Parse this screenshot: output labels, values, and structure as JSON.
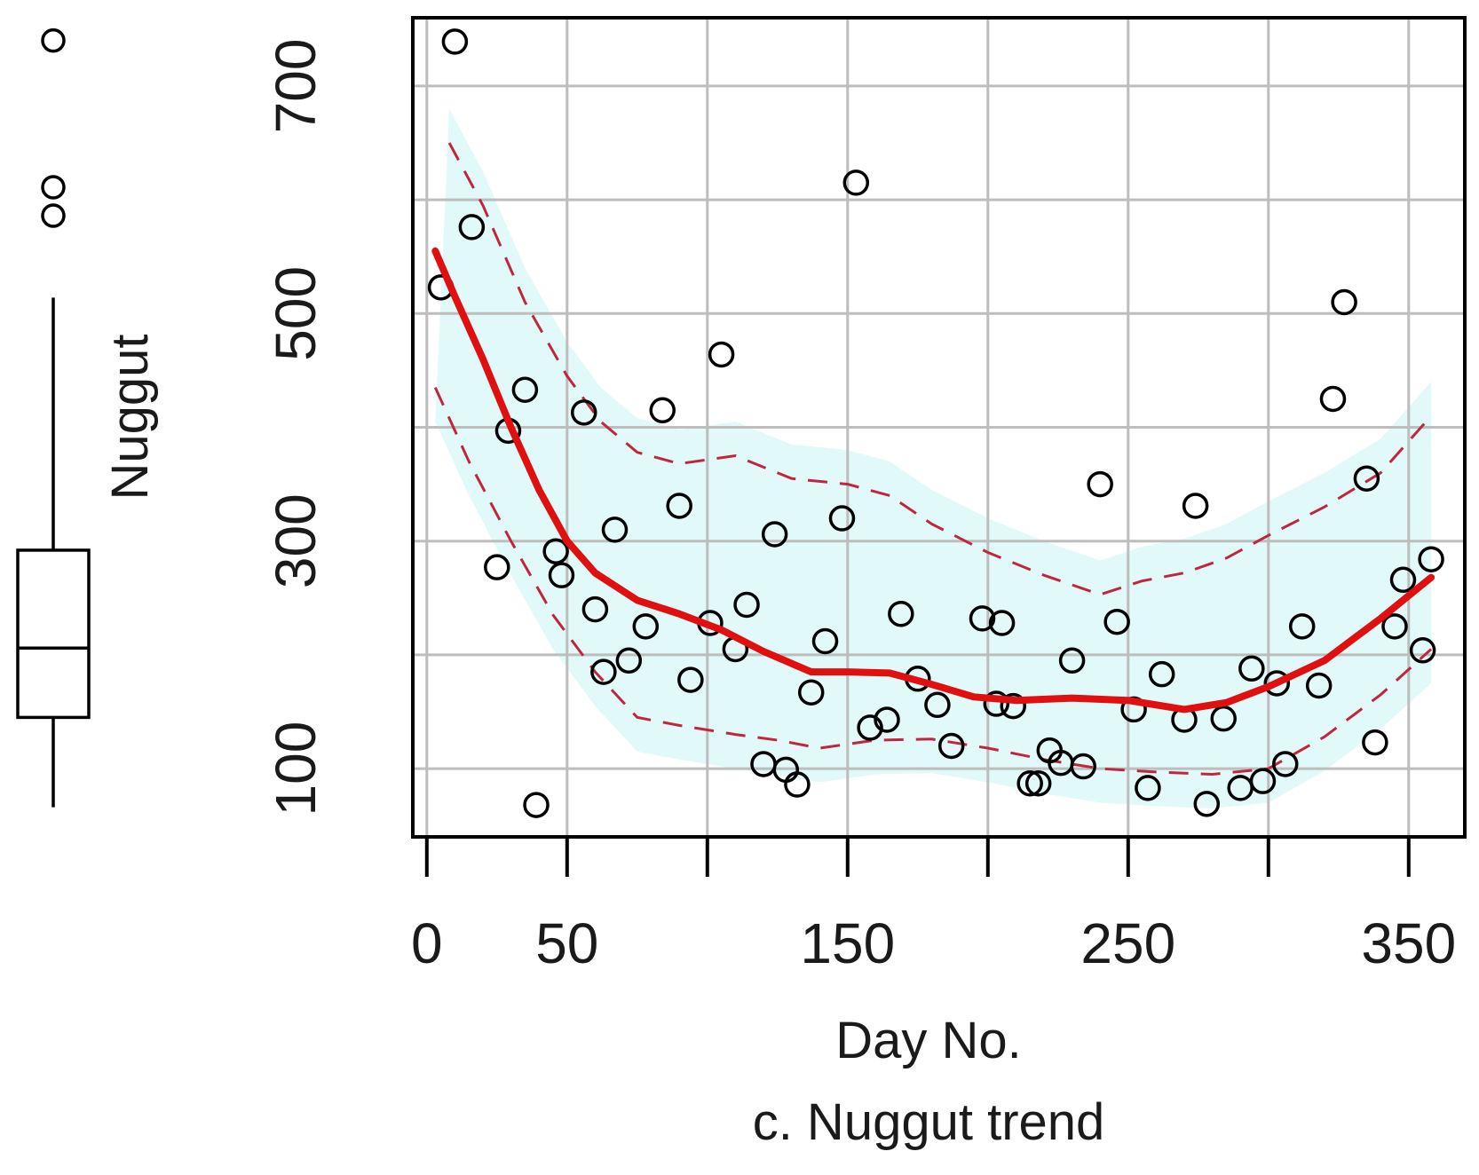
{
  "chart_data": {
    "type": "scatter",
    "caption": "c. Nuggut trend",
    "xlabel": "Day No.",
    "ylabel": "Nuggut",
    "xlim": [
      -5,
      370
    ],
    "ylim": [
      40,
      760
    ],
    "x_ticks": [
      0,
      50,
      100,
      150,
      200,
      250,
      300,
      350
    ],
    "x_tick_labels": [
      "0",
      "50",
      "",
      "150",
      "",
      "250",
      "",
      "350"
    ],
    "y_ticks": [
      100,
      200,
      300,
      400,
      500,
      600,
      700
    ],
    "y_tick_labels": [
      "100",
      "",
      "300",
      "",
      "500",
      "",
      "700"
    ],
    "x_grid": [
      0,
      50,
      100,
      150,
      200,
      250,
      300,
      350
    ],
    "y_grid": [
      100,
      200,
      300,
      400,
      500,
      600,
      700
    ],
    "grid": true,
    "colors": {
      "points": "#000000",
      "trend": "#e01010",
      "band": "#c0263d",
      "grid": "#bdbdbd",
      "ribbon": "#d9f7f7"
    },
    "points": [
      [
        5,
        523
      ],
      [
        10,
        739
      ],
      [
        16,
        576
      ],
      [
        25,
        277
      ],
      [
        29,
        397
      ],
      [
        35,
        433
      ],
      [
        39,
        68
      ],
      [
        46,
        291
      ],
      [
        48,
        270
      ],
      [
        56,
        413
      ],
      [
        60,
        240
      ],
      [
        63,
        185
      ],
      [
        67,
        310
      ],
      [
        72,
        195
      ],
      [
        78,
        225
      ],
      [
        84,
        415
      ],
      [
        90,
        331
      ],
      [
        94,
        178
      ],
      [
        101,
        228
      ],
      [
        105,
        464
      ],
      [
        110,
        205
      ],
      [
        114,
        244
      ],
      [
        120,
        104
      ],
      [
        124,
        306
      ],
      [
        128,
        99
      ],
      [
        132,
        86
      ],
      [
        137,
        167
      ],
      [
        142,
        212
      ],
      [
        148,
        320
      ],
      [
        153,
        615
      ],
      [
        158,
        136
      ],
      [
        164,
        143
      ],
      [
        169,
        236
      ],
      [
        175,
        179
      ],
      [
        182,
        156
      ],
      [
        187,
        120
      ],
      [
        198,
        232
      ],
      [
        203,
        157
      ],
      [
        205,
        228
      ],
      [
        209,
        155
      ],
      [
        215,
        87
      ],
      [
        218,
        87
      ],
      [
        222,
        116
      ],
      [
        226,
        105
      ],
      [
        230,
        195
      ],
      [
        234,
        102
      ],
      [
        240,
        350
      ],
      [
        246,
        229
      ],
      [
        252,
        152
      ],
      [
        257,
        83
      ],
      [
        262,
        183
      ],
      [
        270,
        143
      ],
      [
        274,
        331
      ],
      [
        278,
        69
      ],
      [
        284,
        144
      ],
      [
        290,
        83
      ],
      [
        294,
        188
      ],
      [
        298,
        89
      ],
      [
        303,
        175
      ],
      [
        306,
        104
      ],
      [
        312,
        225
      ],
      [
        318,
        173
      ],
      [
        323,
        425
      ],
      [
        327,
        510
      ],
      [
        335,
        355
      ],
      [
        338,
        123
      ],
      [
        345,
        225
      ],
      [
        348,
        266
      ],
      [
        355,
        204
      ],
      [
        358,
        284
      ]
    ],
    "smooth": [
      [
        3,
        555
      ],
      [
        10,
        515
      ],
      [
        20,
        460
      ],
      [
        30,
        400
      ],
      [
        40,
        345
      ],
      [
        50,
        300
      ],
      [
        60,
        272
      ],
      [
        75,
        248
      ],
      [
        90,
        236
      ],
      [
        105,
        222
      ],
      [
        120,
        203
      ],
      [
        137,
        185
      ],
      [
        150,
        185
      ],
      [
        165,
        184
      ],
      [
        180,
        174
      ],
      [
        195,
        163
      ],
      [
        210,
        160
      ],
      [
        230,
        162
      ],
      [
        250,
        160
      ],
      [
        270,
        152
      ],
      [
        285,
        158
      ],
      [
        300,
        172
      ],
      [
        320,
        195
      ],
      [
        340,
        232
      ],
      [
        358,
        268
      ]
    ],
    "upper_band": [
      [
        8,
        650
      ],
      [
        20,
        595
      ],
      [
        35,
        510
      ],
      [
        50,
        445
      ],
      [
        62,
        405
      ],
      [
        75,
        378
      ],
      [
        90,
        368
      ],
      [
        110,
        375
      ],
      [
        130,
        355
      ],
      [
        150,
        350
      ],
      [
        165,
        340
      ],
      [
        180,
        315
      ],
      [
        200,
        290
      ],
      [
        220,
        270
      ],
      [
        240,
        253
      ],
      [
        255,
        265
      ],
      [
        270,
        272
      ],
      [
        285,
        285
      ],
      [
        300,
        305
      ],
      [
        320,
        330
      ],
      [
        340,
        360
      ],
      [
        358,
        410
      ]
    ],
    "lower_band": [
      [
        3,
        435
      ],
      [
        15,
        370
      ],
      [
        30,
        300
      ],
      [
        45,
        235
      ],
      [
        60,
        185
      ],
      [
        75,
        145
      ],
      [
        90,
        138
      ],
      [
        110,
        130
      ],
      [
        125,
        125
      ],
      [
        140,
        118
      ],
      [
        160,
        125
      ],
      [
        180,
        126
      ],
      [
        200,
        118
      ],
      [
        220,
        108
      ],
      [
        240,
        100
      ],
      [
        260,
        97
      ],
      [
        280,
        95
      ],
      [
        300,
        100
      ],
      [
        320,
        128
      ],
      [
        340,
        165
      ],
      [
        358,
        205
      ]
    ],
    "boxplot": {
      "q1": 145,
      "median": 206,
      "q3": 292,
      "whisker_low": 66,
      "whisker_high": 514,
      "outliers": [
        586,
        611,
        740
      ]
    }
  }
}
